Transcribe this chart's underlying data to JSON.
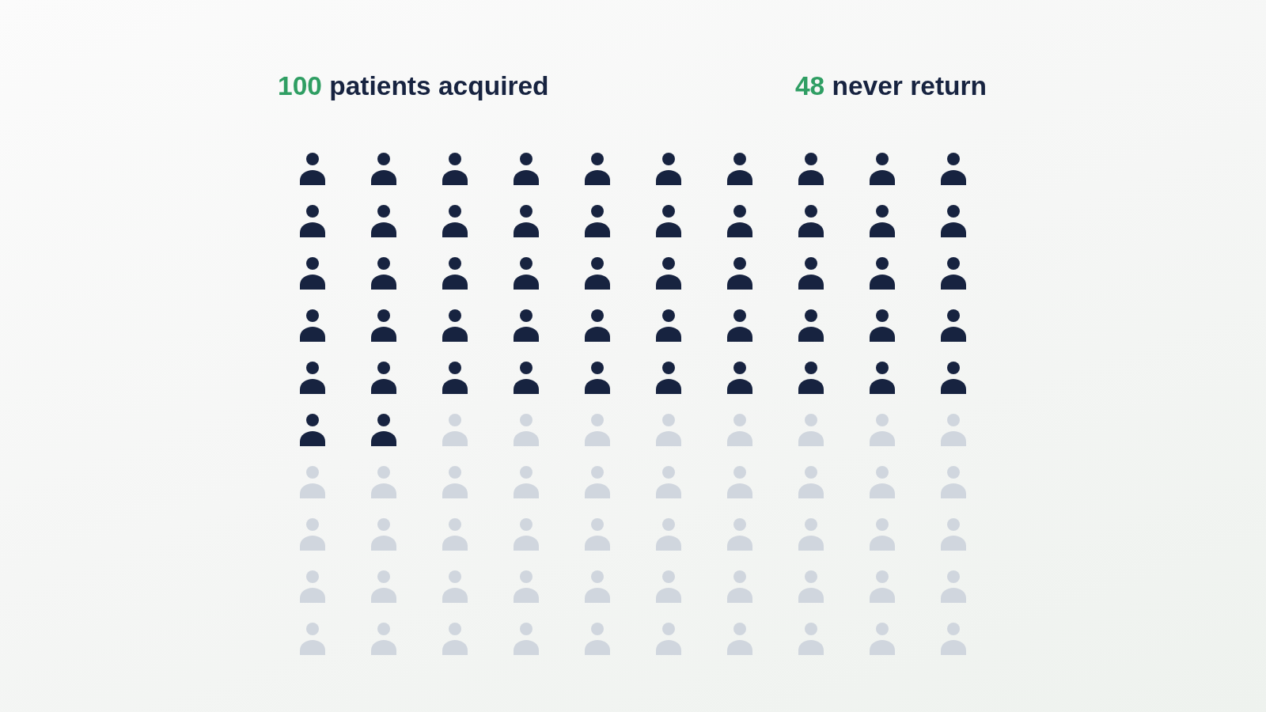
{
  "chart_data": {
    "type": "other",
    "categories": [
      "patients acquired",
      "never return"
    ],
    "values": [
      100,
      48
    ],
    "data_labels": true,
    "colors": [
      "#172340",
      "#d0d6de"
    ]
  }
}
